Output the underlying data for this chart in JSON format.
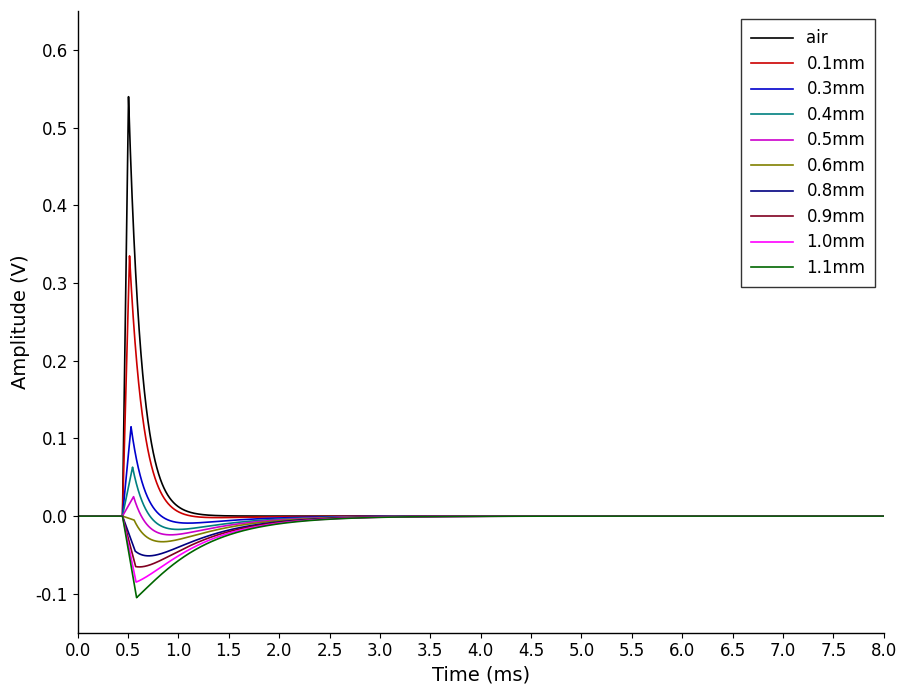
{
  "title": "",
  "xlabel": "Time (ms)",
  "ylabel": "Amplitude (V)",
  "xlim": [
    0.0,
    8.0
  ],
  "ylim": [
    -0.15,
    0.65
  ],
  "xticks": [
    0.0,
    0.5,
    1.0,
    1.5,
    2.0,
    2.5,
    3.0,
    3.5,
    4.0,
    4.5,
    5.0,
    5.5,
    6.0,
    6.5,
    7.0,
    7.5,
    8.0
  ],
  "yticks": [
    -0.1,
    0.0,
    0.1,
    0.2,
    0.3,
    0.4,
    0.5,
    0.6
  ],
  "series": [
    {
      "label": "air",
      "color": "#000000",
      "peak": 0.54,
      "t_peak": 0.505,
      "tau1": 0.13,
      "tau2": 99999,
      "A2": 0.0,
      "t0": 0.445
    },
    {
      "label": "0.1mm",
      "color": "#cc0000",
      "peak": 0.335,
      "t_peak": 0.515,
      "tau1": 0.14,
      "tau2": 0.55,
      "A2": 0.013,
      "t0": 0.445
    },
    {
      "label": "0.3mm",
      "color": "#0000cc",
      "peak": 0.115,
      "t_peak": 0.53,
      "tau1": 0.15,
      "tau2": 0.55,
      "A2": 0.035,
      "t0": 0.445
    },
    {
      "label": "0.4mm",
      "color": "#008080",
      "peak": 0.063,
      "t_peak": 0.545,
      "tau1": 0.16,
      "tau2": 0.55,
      "A2": 0.055,
      "t0": 0.445
    },
    {
      "label": "0.5mm",
      "color": "#cc00cc",
      "peak": 0.025,
      "t_peak": 0.555,
      "tau1": 0.17,
      "tau2": 0.55,
      "A2": 0.068,
      "t0": 0.445
    },
    {
      "label": "0.6mm",
      "color": "#808000",
      "peak": -0.005,
      "t_peak": 0.56,
      "tau1": 0.18,
      "tau2": 0.55,
      "A2": 0.082,
      "t0": 0.445
    },
    {
      "label": "0.8mm",
      "color": "#000080",
      "peak": -0.045,
      "t_peak": 0.57,
      "tau1": 0.19,
      "tau2": 0.55,
      "A2": 0.1,
      "t0": 0.445
    },
    {
      "label": "0.9mm",
      "color": "#800020",
      "peak": -0.065,
      "t_peak": 0.575,
      "tau1": 0.2,
      "tau2": 0.55,
      "A2": 0.11,
      "t0": 0.445
    },
    {
      "label": "1.0mm",
      "color": "#ff00ff",
      "peak": -0.085,
      "t_peak": 0.58,
      "tau1": 0.21,
      "tau2": 0.55,
      "A2": 0.12,
      "t0": 0.445
    },
    {
      "label": "1.1mm",
      "color": "#006600",
      "peak": -0.105,
      "t_peak": 0.585,
      "tau1": 0.22,
      "tau2": 0.55,
      "A2": 0.13,
      "t0": 0.445
    }
  ],
  "background_color": "#ffffff",
  "legend_fontsize": 12,
  "axis_fontsize": 14,
  "tick_fontsize": 12
}
